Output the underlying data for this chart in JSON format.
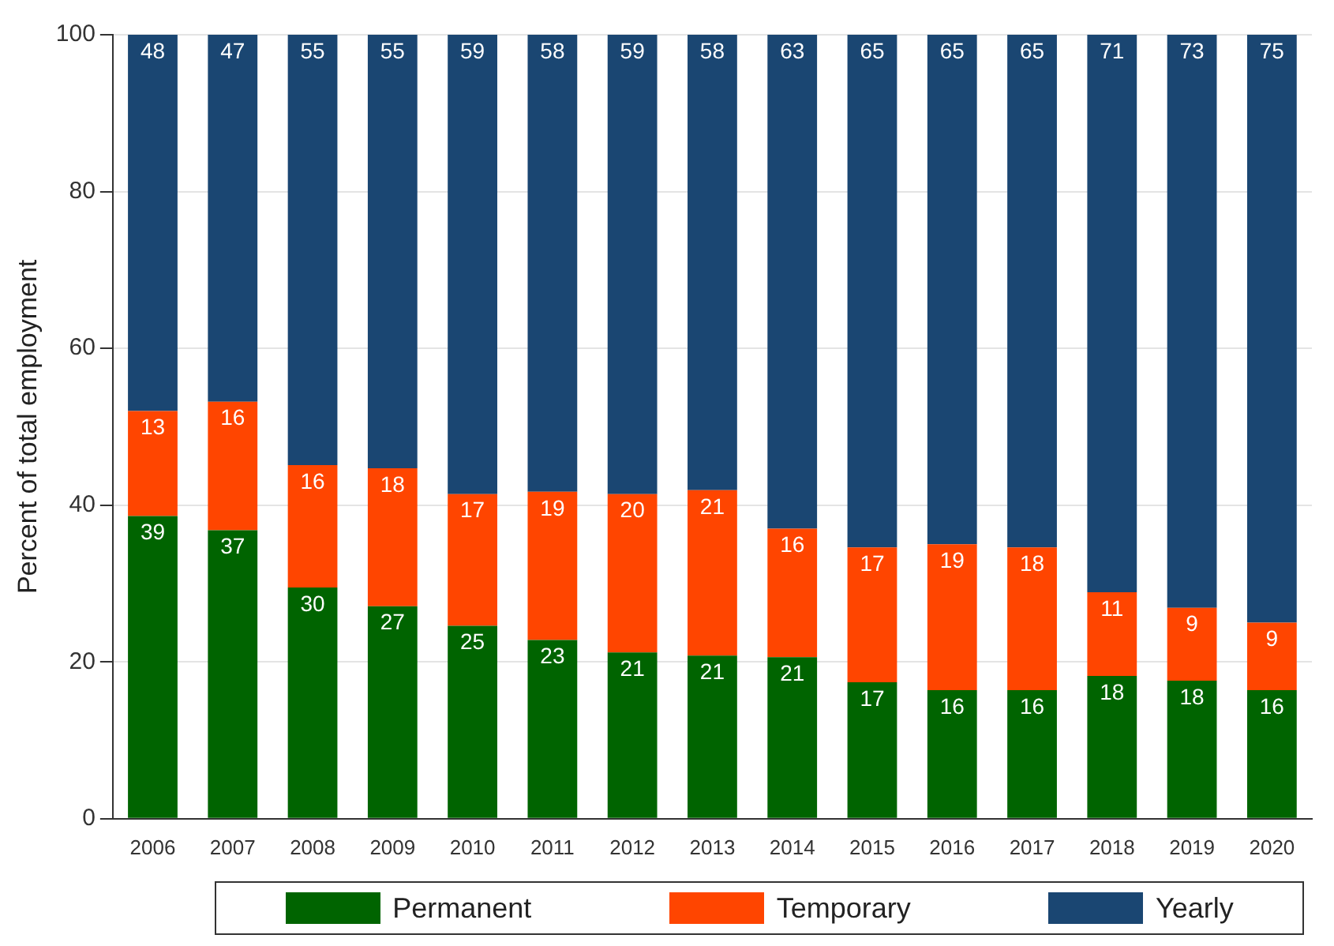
{
  "chart_data": {
    "type": "bar",
    "stacked": true,
    "ylabel": "Percent of total employment",
    "categories": [
      "2006",
      "2007",
      "2008",
      "2009",
      "2010",
      "2011",
      "2012",
      "2013",
      "2014",
      "2015",
      "2016",
      "2017",
      "2018",
      "2019",
      "2020"
    ],
    "ylim": [
      0,
      100
    ],
    "yticks": [
      0,
      20,
      40,
      60,
      80,
      100
    ],
    "grid": "y",
    "legend": "bottom",
    "series": [
      {
        "name": "Permanent",
        "color": "#006400",
        "values": [
          38.6,
          36.8,
          29.5,
          27.1,
          24.6,
          22.8,
          21.2,
          20.8,
          20.6,
          17.4,
          16.4,
          16.4,
          18.2,
          17.6,
          16.4
        ],
        "value_labels": [
          "39",
          "37",
          "30",
          "27",
          "25",
          "23",
          "21",
          "21",
          "21",
          "17",
          "16",
          "16",
          "18",
          "18",
          "16"
        ]
      },
      {
        "name": "Temporary",
        "color": "#ff4500",
        "values": [
          13.4,
          16.4,
          15.6,
          17.6,
          16.8,
          18.9,
          20.2,
          21.1,
          16.4,
          17.2,
          18.6,
          18.2,
          10.7,
          9.3,
          8.6
        ],
        "value_labels": [
          "13",
          "16",
          "16",
          "18",
          "17",
          "19",
          "20",
          "21",
          "16",
          "17",
          "19",
          "18",
          "11",
          "9",
          "9"
        ]
      },
      {
        "name": "Yearly",
        "color": "#1a4672",
        "values": [
          48.0,
          46.8,
          54.9,
          55.3,
          58.6,
          58.3,
          58.6,
          58.1,
          63.0,
          65.4,
          65.0,
          65.4,
          71.1,
          73.1,
          75.0
        ],
        "value_labels": [
          "48",
          "47",
          "55",
          "55",
          "59",
          "58",
          "59",
          "58",
          "63",
          "65",
          "65",
          "65",
          "71",
          "73",
          "75"
        ]
      }
    ]
  }
}
